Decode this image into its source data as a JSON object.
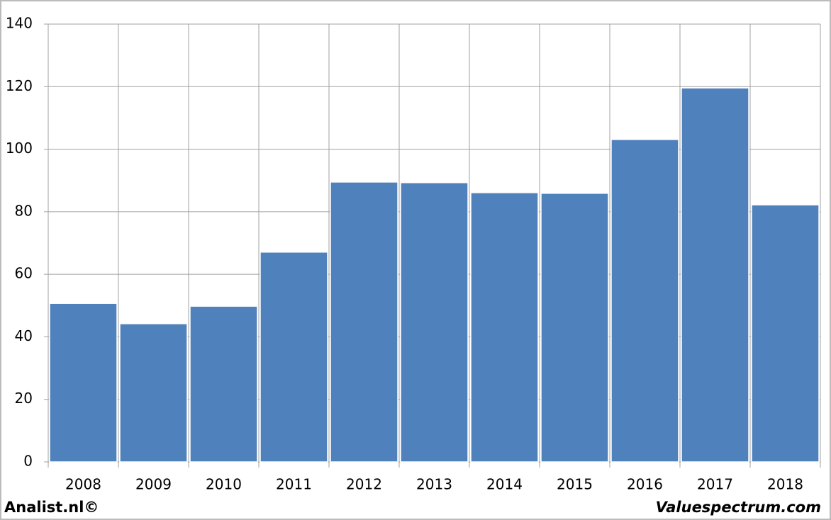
{
  "chart_data": {
    "type": "bar",
    "categories": [
      "2008",
      "2009",
      "2010",
      "2011",
      "2012",
      "2013",
      "2014",
      "2015",
      "2016",
      "2017",
      "2018"
    ],
    "values": [
      50.7,
      44.2,
      49.8,
      67.1,
      89.5,
      89.3,
      86.1,
      85.9,
      103.1,
      119.6,
      82.2
    ],
    "color": "#4f81bd",
    "ylim": [
      0,
      140
    ],
    "yticks": [
      0,
      20,
      40,
      60,
      80,
      100,
      120,
      140
    ],
    "grid": true
  },
  "footer": {
    "left": "Analist.nl©",
    "right": "Valuespectrum.com"
  }
}
